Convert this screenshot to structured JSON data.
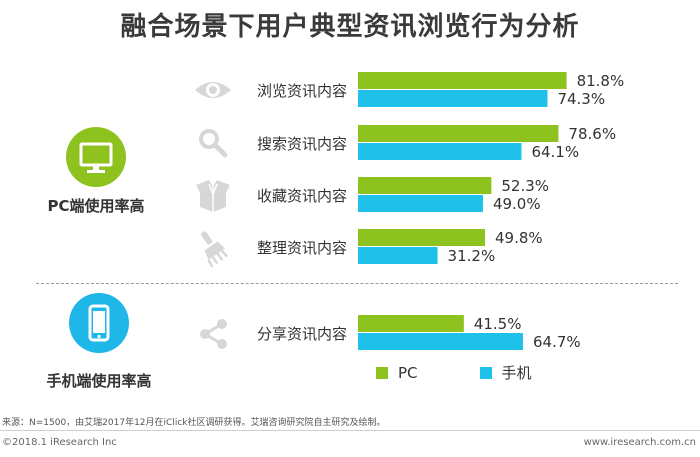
{
  "title": "融合场景下用户典型资讯浏览行为分析",
  "colors": {
    "pc": "#8dc21f",
    "mobile": "#1fc1ea",
    "icon_gray": "#d7d7d7",
    "circle_pc": "#8dc21f",
    "circle_mobile": "#1fb7e8"
  },
  "groups": {
    "pc": {
      "label": "PC端使用率高",
      "icon": "monitor-icon"
    },
    "mobile": {
      "label": "手机端使用率高",
      "icon": "smartphone-icon"
    }
  },
  "legend": {
    "pc": "PC",
    "mobile": "手机"
  },
  "source": "来源：N=1500，由艾瑞2017年12月在iClick社区调研获得。艾瑞咨询研究院自主研究及绘制。",
  "copyright": "©2018.1 iResearch Inc",
  "website": "www.iresearch.com.cn",
  "chart_data": {
    "type": "bar",
    "orientation": "horizontal",
    "title": "融合场景下用户典型资讯浏览行为分析",
    "categories": [
      "浏览资讯内容",
      "搜索资讯内容",
      "收藏资讯内容",
      "整理资讯内容",
      "分享资讯内容"
    ],
    "category_icons": [
      "eye-icon",
      "magnifier-icon",
      "box-icon",
      "brush-icon",
      "share-icon"
    ],
    "series": [
      {
        "name": "PC",
        "values": [
          81.8,
          78.6,
          52.3,
          49.8,
          41.5
        ],
        "labels": [
          "81.8%",
          "78.6%",
          "52.3%",
          "49.8%",
          "41.5%"
        ]
      },
      {
        "name": "手机",
        "values": [
          74.3,
          64.1,
          49.0,
          31.2,
          64.7
        ],
        "labels": [
          "74.3%",
          "64.1%",
          "49.0%",
          "31.2%",
          "64.7%"
        ]
      }
    ],
    "xlim": [
      0,
      100
    ],
    "grid": false,
    "legend_position": "bottom"
  }
}
